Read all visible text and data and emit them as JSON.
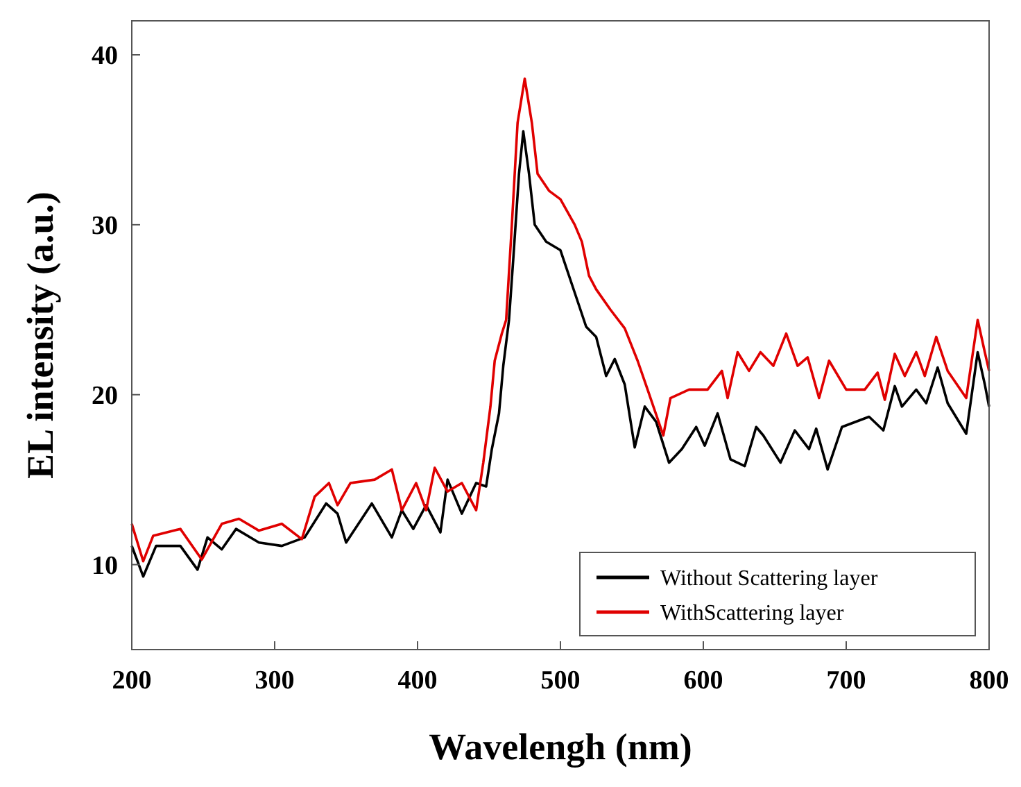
{
  "chart_data": {
    "type": "line",
    "xlabel": "Wavelengh (nm)",
    "ylabel": "EL intensity (a.u.)",
    "xlim": [
      200,
      800
    ],
    "xticks": [
      200,
      300,
      400,
      500,
      600,
      700,
      800
    ],
    "ylim": [
      5,
      42
    ],
    "yticks": [
      10,
      20,
      30,
      40
    ],
    "grid": false,
    "legend": "bottom right",
    "line_style": "solid",
    "marker": "none",
    "series": [
      {
        "name": "Without Scattering layer",
        "color": "#000000",
        "x": [
          200,
          208,
          217,
          234,
          246,
          253,
          263,
          273,
          289,
          305,
          321,
          336,
          344,
          350,
          368,
          382,
          389,
          397,
          406,
          416,
          421,
          431,
          441,
          448,
          452,
          457,
          460,
          464,
          467,
          471,
          474,
          478,
          482,
          490,
          500,
          510,
          518,
          525,
          532,
          538,
          545,
          552,
          559,
          567,
          576,
          585,
          595,
          601,
          610,
          619,
          629,
          637,
          642,
          654,
          664,
          674,
          679,
          687,
          697,
          716,
          726,
          734,
          739,
          749,
          756,
          764,
          771,
          784,
          792,
          797,
          800
        ],
        "values": [
          11.1,
          9.3,
          11.1,
          11.1,
          9.7,
          11.6,
          10.9,
          12.1,
          11.3,
          11.1,
          11.6,
          13.6,
          13.0,
          11.3,
          13.6,
          11.6,
          13.2,
          12.1,
          13.5,
          11.9,
          15.0,
          13.0,
          14.8,
          14.6,
          16.8,
          18.9,
          21.7,
          24.4,
          28,
          33,
          35.5,
          33,
          30,
          29,
          28.5,
          26,
          24,
          23.4,
          21.1,
          22.1,
          20.6,
          16.9,
          19.3,
          18.4,
          16.0,
          16.8,
          18.1,
          17.0,
          18.9,
          16.2,
          15.8,
          18.1,
          17.6,
          16.0,
          17.9,
          16.8,
          18.0,
          15.6,
          18.1,
          18.7,
          17.9,
          20.5,
          19.3,
          20.3,
          19.5,
          21.6,
          19.5,
          17.7,
          22.5,
          20.6,
          19.3
        ]
      },
      {
        "name": "WithScattering layer",
        "color": "#e00000",
        "x": [
          200,
          208,
          215,
          234,
          249,
          263,
          275,
          289,
          305,
          319,
          328,
          338,
          344,
          353,
          370,
          382,
          389,
          399,
          406,
          412,
          421,
          431,
          441,
          446,
          451,
          454,
          459,
          462,
          466,
          470,
          475,
          480,
          484,
          492,
          500,
          510,
          515,
          520,
          525,
          535,
          545,
          554,
          561,
          572,
          577,
          590,
          603,
          613,
          617,
          624,
          632,
          640,
          649,
          658,
          666,
          673,
          681,
          688,
          700,
          713,
          722,
          727,
          734,
          741,
          749,
          755,
          763,
          771,
          784,
          792,
          797,
          800
        ],
        "values": [
          12.4,
          10.2,
          11.7,
          12.1,
          10.3,
          12.4,
          12.7,
          12.0,
          12.4,
          11.5,
          14.0,
          14.8,
          13.5,
          14.8,
          15.0,
          15.6,
          13.2,
          14.8,
          13.2,
          15.7,
          14.3,
          14.8,
          13.2,
          16.0,
          19.3,
          22.0,
          23.6,
          24.4,
          30,
          36,
          38.6,
          36,
          33,
          32,
          31.5,
          30,
          29,
          27,
          26.2,
          25.0,
          23.9,
          22.0,
          20.3,
          17.6,
          19.8,
          20.3,
          20.3,
          21.4,
          19.8,
          22.5,
          21.4,
          22.5,
          21.7,
          23.6,
          21.7,
          22.2,
          19.8,
          22.0,
          20.3,
          20.3,
          21.3,
          19.7,
          22.4,
          21.1,
          22.5,
          21.1,
          23.4,
          21.4,
          19.8,
          24.4,
          22.5,
          21.4
        ]
      }
    ]
  }
}
